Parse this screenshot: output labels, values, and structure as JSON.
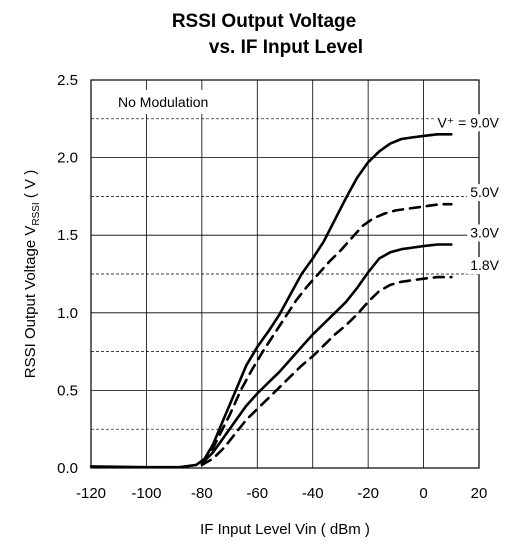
{
  "chart_data": {
    "type": "line",
    "title_line1": "RSSI Output Voltage",
    "title_line2": "vs. IF Input Level",
    "xlabel": "IF Input Level Vin ( dBm )",
    "ylabel": "RSSI Output Voltage V",
    "ylabel_sub": "RSSI",
    "ylabel_suffix": " ( V )",
    "xlim": [
      -120,
      20
    ],
    "ylim": [
      0,
      2.5
    ],
    "xticks": [
      -120,
      -100,
      -80,
      -60,
      -40,
      -20,
      0,
      20
    ],
    "yticks": [
      0.0,
      0.5,
      1.0,
      1.5,
      2.0,
      2.5
    ],
    "xtick_labels": [
      "-120",
      "-100",
      "-80",
      "-60",
      "-40",
      "-20",
      "0",
      "20"
    ],
    "ytick_labels": [
      "0.0",
      "0.5",
      "1.0",
      "1.5",
      "2.0",
      "2.5"
    ],
    "grid_solid_y": [
      0.5,
      1.0,
      1.5,
      2.0
    ],
    "grid_dashed_y": [
      0.25,
      0.75,
      1.25,
      1.75,
      2.25
    ],
    "grid_solid_x": [
      -100,
      -80,
      -60,
      -40,
      -20,
      0
    ],
    "annotation": "No Modulation",
    "series": [
      {
        "name": "V⁺ = 9.0V",
        "style": "solid",
        "x": [
          -120,
          -100,
          -88,
          -82,
          -79,
          -76,
          -72,
          -68,
          -64,
          -60,
          -56,
          -52,
          -48,
          -44,
          -40,
          -36,
          -32,
          -28,
          -24,
          -20,
          -16,
          -12,
          -8,
          -4,
          0,
          5,
          10
        ],
        "y": [
          0.01,
          0.005,
          0.005,
          0.02,
          0.06,
          0.15,
          0.32,
          0.49,
          0.66,
          0.78,
          0.88,
          0.99,
          1.12,
          1.25,
          1.35,
          1.46,
          1.6,
          1.74,
          1.87,
          1.97,
          2.04,
          2.09,
          2.12,
          2.13,
          2.14,
          2.15,
          2.15
        ]
      },
      {
        "name": "5.0V",
        "style": "dashed",
        "x": [
          -80,
          -77,
          -74,
          -70,
          -66,
          -62,
          -58,
          -54,
          -50,
          -46,
          -42,
          -38,
          -34,
          -30,
          -26,
          -22,
          -18,
          -14,
          -10,
          -6,
          -2,
          2,
          6,
          10
        ],
        "y": [
          0.03,
          0.09,
          0.2,
          0.34,
          0.5,
          0.63,
          0.75,
          0.86,
          0.97,
          1.08,
          1.17,
          1.25,
          1.33,
          1.4,
          1.48,
          1.56,
          1.61,
          1.64,
          1.66,
          1.67,
          1.68,
          1.69,
          1.7,
          1.7
        ]
      },
      {
        "name": "3.0V",
        "style": "solid",
        "x": [
          -80,
          -76,
          -72,
          -68,
          -64,
          -60,
          -56,
          -52,
          -48,
          -44,
          -40,
          -36,
          -32,
          -28,
          -24,
          -20,
          -16,
          -12,
          -8,
          -4,
          0,
          5,
          10
        ],
        "y": [
          0.03,
          0.1,
          0.2,
          0.3,
          0.4,
          0.48,
          0.55,
          0.62,
          0.7,
          0.78,
          0.86,
          0.93,
          1.0,
          1.07,
          1.16,
          1.26,
          1.35,
          1.39,
          1.41,
          1.42,
          1.43,
          1.44,
          1.44
        ]
      },
      {
        "name": "1.8V",
        "style": "dashed",
        "x": [
          -80,
          -76,
          -72,
          -68,
          -64,
          -60,
          -56,
          -52,
          -48,
          -44,
          -40,
          -36,
          -32,
          -28,
          -24,
          -20,
          -16,
          -12,
          -8,
          -4,
          0,
          5,
          10
        ],
        "y": [
          0.02,
          0.06,
          0.13,
          0.22,
          0.31,
          0.38,
          0.45,
          0.52,
          0.59,
          0.66,
          0.72,
          0.79,
          0.86,
          0.92,
          0.99,
          1.07,
          1.14,
          1.18,
          1.2,
          1.21,
          1.22,
          1.23,
          1.23
        ]
      }
    ]
  }
}
